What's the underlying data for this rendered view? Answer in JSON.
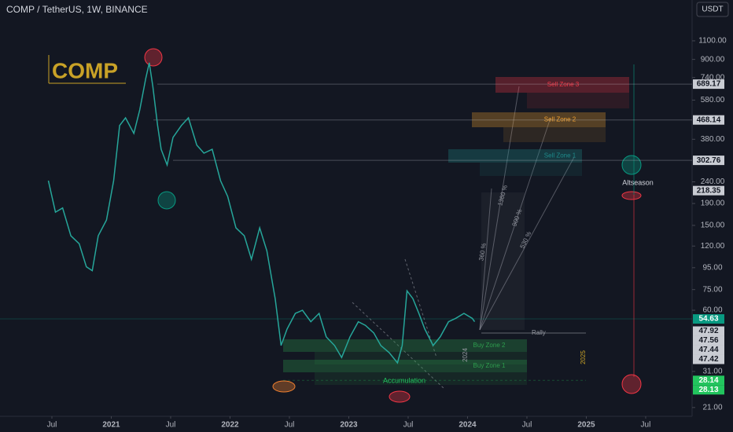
{
  "header": {
    "symbol": "COMP / TetherUS, 1W, BINANCE",
    "currency_button": "USDT",
    "logo": "COMP"
  },
  "chart_data": {
    "type": "line",
    "log_scale": true,
    "color": "#26a69a",
    "xlim": [
      2020.063,
      2025.891
    ],
    "ylim": [
      19.1,
      1709
    ],
    "xticks": [
      {
        "value": 2020.5,
        "label": "Jul"
      },
      2021,
      {
        "value": 2021.5,
        "label": "Jul"
      },
      2022,
      {
        "value": 2022.5,
        "label": "Jul"
      },
      2023,
      {
        "value": 2023.5,
        "label": "Jul"
      },
      2024,
      {
        "value": 2024.5,
        "label": "Jul"
      },
      2025,
      {
        "value": 2025.5,
        "label": "Jul"
      }
    ],
    "yticks": [
      {
        "value": 1100,
        "label": "1100.00"
      },
      {
        "value": 900,
        "label": "900.00"
      },
      {
        "value": 740,
        "label": "740.00"
      },
      {
        "value": 580,
        "label": "580.00"
      },
      {
        "value": 380,
        "label": "380.00"
      },
      {
        "value": 240,
        "label": "240.00"
      },
      {
        "value": 190,
        "label": "190.00"
      },
      {
        "value": 150,
        "label": "150.00"
      },
      {
        "value": 120,
        "label": "120.00"
      },
      {
        "value": 95,
        "label": "95.00"
      },
      {
        "value": 75,
        "label": "75.00"
      },
      {
        "value": 60,
        "label": "60.00"
      },
      {
        "value": 31,
        "label": "31.00"
      },
      {
        "value": 21,
        "label": "21.00"
      }
    ],
    "x": [
      2020.47,
      2020.53,
      2020.59,
      2020.66,
      2020.73,
      2020.79,
      2020.84,
      2020.89,
      2020.96,
      2021.02,
      2021.07,
      2021.12,
      2021.19,
      2021.24,
      2021.29,
      2021.32,
      2021.35,
      2021.39,
      2021.42,
      2021.47,
      2021.52,
      2021.59,
      2021.65,
      2021.72,
      2021.78,
      2021.85,
      2021.92,
      2021.98,
      2022.05,
      2022.12,
      2022.18,
      2022.25,
      2022.31,
      2022.38,
      2022.43,
      2022.48,
      2022.55,
      2022.61,
      2022.68,
      2022.75,
      2022.81,
      2022.88,
      2022.94,
      2023.01,
      2023.08,
      2023.14,
      2023.21,
      2023.27,
      2023.34,
      2023.41,
      2023.45,
      2023.49,
      2023.54,
      2023.59,
      2023.64,
      2023.71,
      2023.77,
      2023.84,
      2023.9,
      2023.97,
      2024.04,
      2024.06
    ],
    "values": [
      243,
      173,
      181,
      134,
      123,
      96,
      92,
      134,
      159,
      243,
      441,
      479,
      405,
      522,
      732,
      868,
      673,
      441,
      341,
      288,
      388,
      441,
      479,
      357,
      327,
      341,
      243,
      205,
      146,
      134,
      104,
      146,
      114,
      68,
      41,
      49,
      58,
      60,
      53,
      58,
      45,
      41,
      36,
      45,
      53,
      51,
      47,
      41,
      38,
      34,
      41,
      74,
      68,
      58,
      49,
      41,
      45,
      53,
      55,
      58,
      55,
      53
    ],
    "price_labels": [
      {
        "value": 689.17,
        "color": "#c9ccd3"
      },
      {
        "value": 468.14,
        "color": "#c9ccd3"
      },
      {
        "value": 302.76,
        "color": "#c9ccd3"
      },
      {
        "value": 218.35,
        "color": "#c9ccd3"
      },
      {
        "value": 54.63,
        "color": "#089981"
      },
      {
        "value": 47.92,
        "color": "#c9ccd3"
      },
      {
        "value": 47.56,
        "color": "#c9ccd3"
      },
      {
        "value": 47.44,
        "color": "#c9ccd3"
      },
      {
        "value": 47.42,
        "color": "#c9ccd3"
      },
      {
        "value": 28.14,
        "color": "#22c55e"
      },
      {
        "value": 28.13,
        "color": "#22c55e"
      }
    ],
    "zones": [
      {
        "label": "Sell Zone 3",
        "color": "#f23645"
      },
      {
        "label": "Sell Zone 2",
        "color": "#f0a030"
      },
      {
        "label": "Sell Zone 1",
        "color": "#1e8a8a"
      },
      {
        "label": "Buy Zone 2",
        "color": "#2e9e4e"
      },
      {
        "label": "Buy Zone 1",
        "color": "#2e9e4e"
      }
    ],
    "annotations": {
      "rally": "Rally",
      "altseason": "Altseason",
      "accumulation": "Accumulation",
      "pct_360": "360 %",
      "pct_1360": "1360 %",
      "pct_900": "900 %",
      "pct_530": "530 %",
      "year_2024": "2024",
      "year_2025": "2025"
    }
  }
}
